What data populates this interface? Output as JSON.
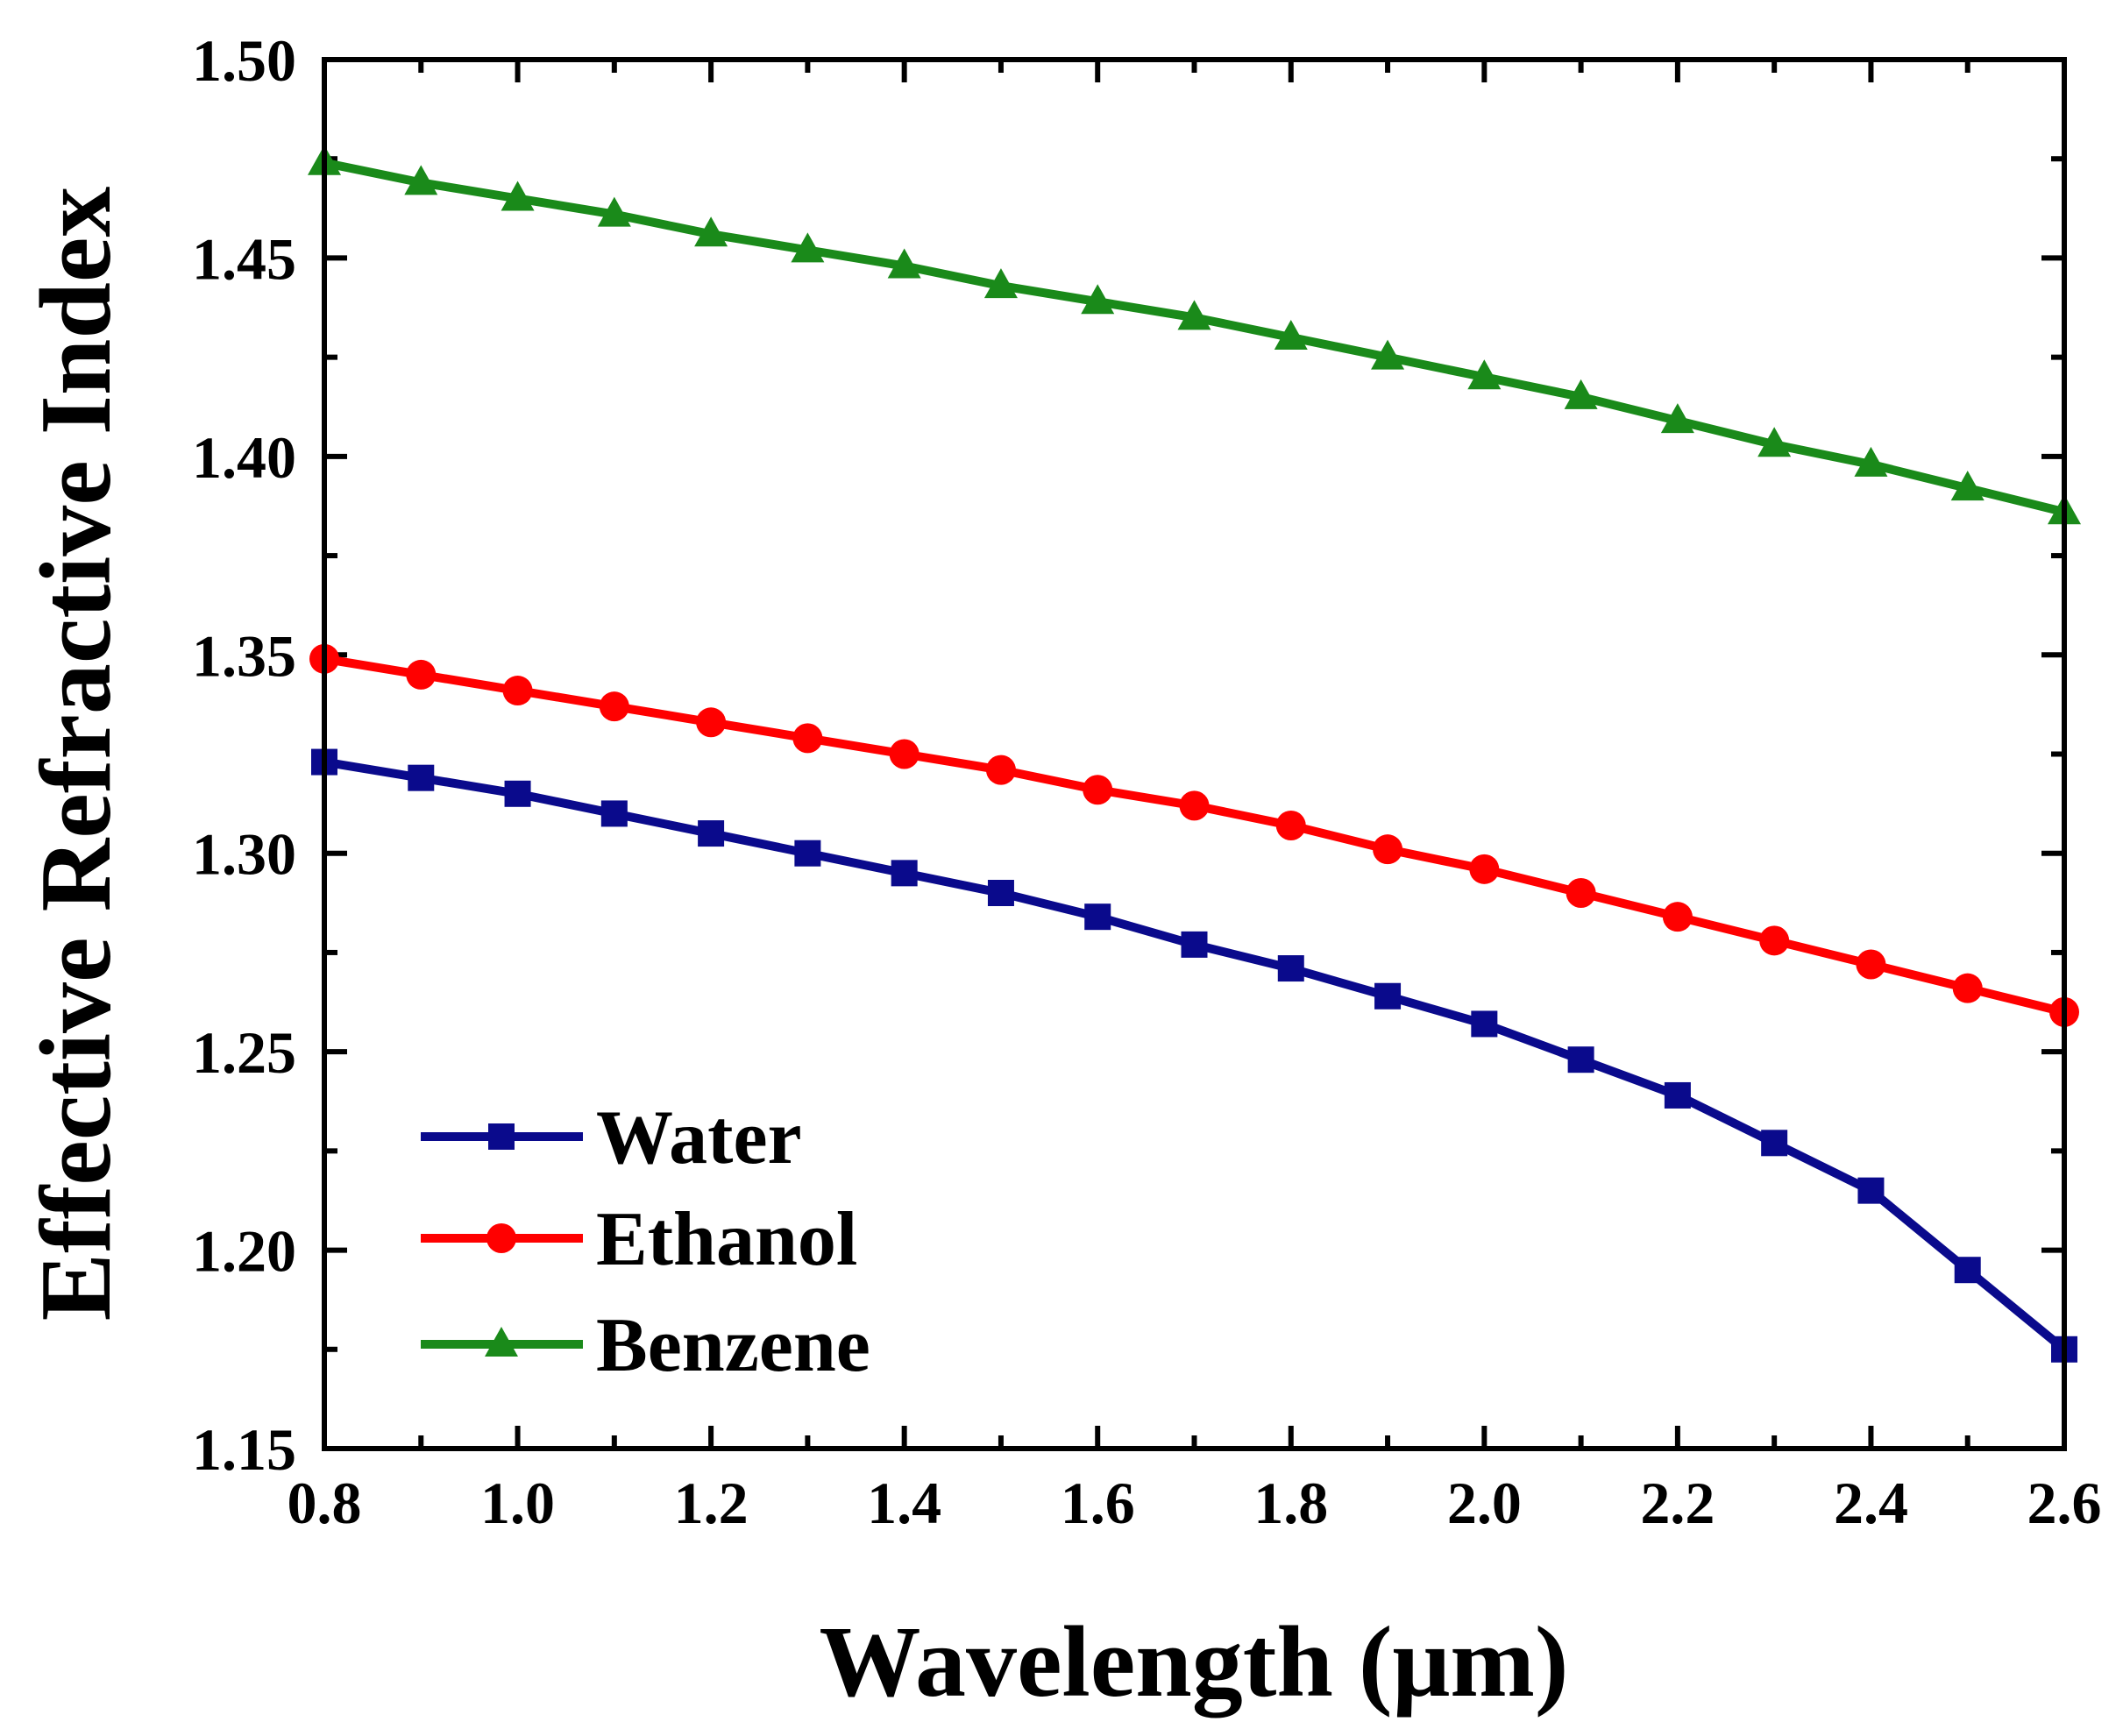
{
  "chart_data": {
    "type": "line",
    "title": "",
    "xlabel": "Wavelength (μm)",
    "ylabel": "Effective Refractive Index",
    "xlim": [
      0.8,
      2.6
    ],
    "ylim": [
      1.15,
      1.5
    ],
    "xticks": [
      0.8,
      1.0,
      1.2,
      1.4,
      1.6,
      1.8,
      2.0,
      2.2,
      2.4,
      2.6
    ],
    "xtick_labels": [
      "0.8",
      "1.0",
      "1.2",
      "1.4",
      "1.6",
      "1.8",
      "2.0",
      "2.2",
      "2.4",
      "2.6"
    ],
    "yticks": [
      1.15,
      1.2,
      1.25,
      1.3,
      1.35,
      1.4,
      1.45,
      1.5
    ],
    "ytick_labels": [
      "1.15",
      "1.20",
      "1.25",
      "1.30",
      "1.35",
      "1.40",
      "1.45",
      "1.50"
    ],
    "grid": false,
    "legend_position": "bottom-left",
    "x": [
      0.8,
      0.9,
      1.0,
      1.1,
      1.2,
      1.3,
      1.4,
      1.5,
      1.6,
      1.7,
      1.8,
      1.9,
      2.0,
      2.1,
      2.2,
      2.3,
      2.4,
      2.5,
      2.6
    ],
    "series": [
      {
        "name": "Water",
        "color": "#0a0a8c",
        "marker": "square",
        "values": [
          1.323,
          1.319,
          1.315,
          1.31,
          1.305,
          1.3,
          1.295,
          1.29,
          1.284,
          1.277,
          1.271,
          1.264,
          1.257,
          1.248,
          1.239,
          1.227,
          1.215,
          1.195,
          1.175
        ]
      },
      {
        "name": "Ethanol",
        "color": "#ff0000",
        "marker": "circle",
        "values": [
          1.349,
          1.345,
          1.341,
          1.337,
          1.333,
          1.329,
          1.325,
          1.321,
          1.316,
          1.312,
          1.307,
          1.301,
          1.296,
          1.29,
          1.284,
          1.278,
          1.272,
          1.266,
          1.26
        ]
      },
      {
        "name": "Benzene",
        "color": "#1a8a1a",
        "marker": "triangle",
        "values": [
          1.474,
          1.469,
          1.465,
          1.461,
          1.456,
          1.452,
          1.448,
          1.443,
          1.439,
          1.435,
          1.43,
          1.425,
          1.42,
          1.415,
          1.409,
          1.403,
          1.398,
          1.392,
          1.386
        ]
      }
    ]
  }
}
